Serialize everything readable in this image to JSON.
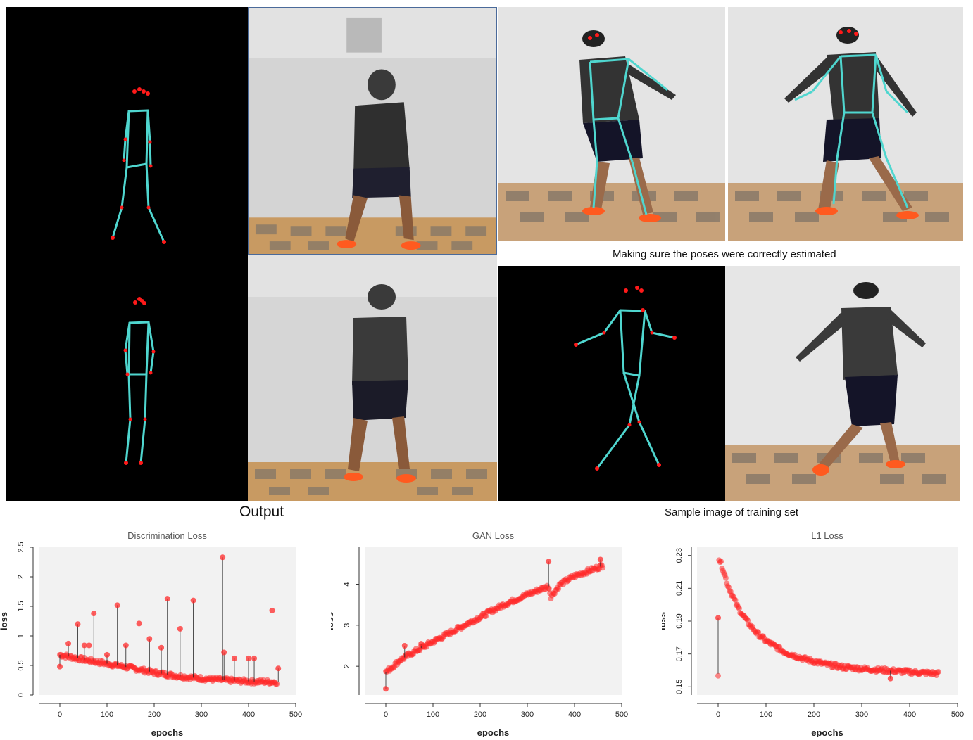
{
  "captions": {
    "pose_check": "Making sure the poses were correctly estimated",
    "output": "Output",
    "sample": "Sample image of training set"
  },
  "colors": {
    "skeleton": "#4fd6cf",
    "keypoint": "#ff1a1a",
    "series": "#ff2a2a",
    "plot_bg": "#f2f2f2"
  },
  "chart_data": [
    {
      "type": "scatter",
      "title": "Discrimination Loss",
      "xlabel": "epochs",
      "ylabel": "loss",
      "xlim": [
        0,
        500
      ],
      "ylim": [
        0,
        2.5
      ],
      "xticks": [
        "0",
        "100",
        "200",
        "300",
        "400",
        "500"
      ],
      "yticks": [
        "0",
        "0.5",
        "1",
        "1.5",
        "2",
        "2.5"
      ],
      "series": [
        {
          "trend": [
            [
              0,
              0.68
            ],
            [
              50,
              0.6
            ],
            [
              100,
              0.53
            ],
            [
              150,
              0.46
            ],
            [
              200,
              0.38
            ],
            [
              250,
              0.32
            ],
            [
              300,
              0.28
            ],
            [
              350,
              0.25
            ],
            [
              400,
              0.23
            ],
            [
              460,
              0.22
            ]
          ],
          "spikes": [
            [
              0,
              0.48
            ],
            [
              18,
              0.87
            ],
            [
              38,
              1.2
            ],
            [
              52,
              0.84
            ],
            [
              62,
              0.84
            ],
            [
              72,
              1.38
            ],
            [
              100,
              0.68
            ],
            [
              122,
              1.52
            ],
            [
              140,
              0.84
            ],
            [
              168,
              1.21
            ],
            [
              190,
              0.95
            ],
            [
              215,
              0.8
            ],
            [
              228,
              1.63
            ],
            [
              255,
              1.12
            ],
            [
              283,
              1.6
            ],
            [
              345,
              2.33
            ],
            [
              348,
              0.72
            ],
            [
              370,
              0.62
            ],
            [
              400,
              0.62
            ],
            [
              412,
              0.62
            ],
            [
              450,
              1.43
            ],
            [
              463,
              0.45
            ]
          ]
        }
      ]
    },
    {
      "type": "scatter",
      "title": "GAN Loss",
      "xlabel": "epochs",
      "ylabel": "loss",
      "xlim": [
        0,
        500
      ],
      "ylim": [
        1.3,
        4.9
      ],
      "xticks": [
        "0",
        "100",
        "200",
        "300",
        "400",
        "500"
      ],
      "yticks": [
        "2",
        "3",
        "4"
      ],
      "series": [
        {
          "trend": [
            [
              0,
              1.85
            ],
            [
              30,
              2.15
            ],
            [
              60,
              2.35
            ],
            [
              100,
              2.6
            ],
            [
              150,
              2.9
            ],
            [
              200,
              3.2
            ],
            [
              250,
              3.5
            ],
            [
              300,
              3.75
            ],
            [
              345,
              3.95
            ],
            [
              350,
              3.7
            ],
            [
              370,
              4.0
            ],
            [
              400,
              4.2
            ],
            [
              460,
              4.45
            ]
          ],
          "spikes": [
            [
              0,
              1.45
            ],
            [
              40,
              2.5
            ],
            [
              75,
              2.55
            ],
            [
              345,
              4.55
            ],
            [
              455,
              4.6
            ]
          ]
        }
      ]
    },
    {
      "type": "scatter",
      "title": "L1 Loss",
      "xlabel": "epochs",
      "ylabel": "loss",
      "xlim": [
        0,
        500
      ],
      "ylim": [
        0.145,
        0.235
      ],
      "xticks": [
        "0",
        "100",
        "200",
        "300",
        "400",
        "500"
      ],
      "yticks": [
        "0.15",
        "0.17",
        "0.19",
        "0.21",
        "0.23"
      ],
      "series": [
        {
          "trend": [
            [
              2,
              0.228
            ],
            [
              10,
              0.222
            ],
            [
              20,
              0.212
            ],
            [
              40,
              0.199
            ],
            [
              60,
              0.19
            ],
            [
              80,
              0.183
            ],
            [
              100,
              0.178
            ],
            [
              140,
              0.171
            ],
            [
              180,
              0.167
            ],
            [
              220,
              0.164
            ],
            [
              260,
              0.162
            ],
            [
              300,
              0.161
            ],
            [
              350,
              0.16
            ],
            [
              400,
              0.159
            ],
            [
              460,
              0.158
            ]
          ],
          "spikes": [
            [
              0,
              0.192
            ],
            [
              360,
              0.155
            ]
          ]
        }
      ]
    }
  ]
}
